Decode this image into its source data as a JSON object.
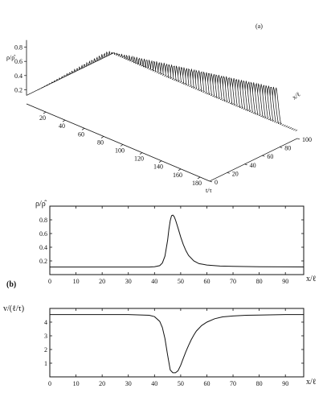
{
  "chart_data": [
    {
      "panel_label": "(a)",
      "type": "surface3d",
      "z_axis": {
        "label": "ρ/ρ̂",
        "ticks": [
          "0.2",
          "0.4",
          "0.6",
          "0.8"
        ]
      },
      "x_axis": {
        "label": "x/ℓ",
        "ticks": [
          "0",
          "20",
          "40",
          "60",
          "80",
          "100"
        ]
      },
      "t_axis": {
        "label": "t/τ",
        "ticks": [
          "20",
          "40",
          "60",
          "80",
          "100",
          "120",
          "140",
          "160",
          "180"
        ]
      },
      "background_density": 0.12,
      "peak_density": 0.88,
      "x_range": [
        0,
        100
      ],
      "t_range": [
        0,
        190
      ]
    },
    {
      "panel_label": "(b)",
      "type": "line",
      "ylabel": "ρ/ρ̂",
      "xlabel": "x/ℓ",
      "xlim": [
        0,
        97
      ],
      "ylim": [
        0,
        1
      ],
      "xticks": [
        "0",
        "10",
        "20",
        "30",
        "40",
        "50",
        "60",
        "70",
        "80",
        "90"
      ],
      "yticks": [
        "0.2",
        "0.4",
        "0.6",
        "0.8"
      ],
      "x": [
        0,
        10,
        20,
        30,
        38,
        40,
        42,
        43,
        44,
        45,
        45.5,
        46,
        46.5,
        47,
        47.5,
        48,
        49,
        50,
        51,
        52,
        53,
        55,
        57,
        60,
        65,
        70,
        80,
        90,
        97
      ],
      "y": [
        0.11,
        0.11,
        0.11,
        0.11,
        0.11,
        0.115,
        0.13,
        0.17,
        0.27,
        0.5,
        0.66,
        0.79,
        0.86,
        0.87,
        0.85,
        0.8,
        0.68,
        0.55,
        0.44,
        0.35,
        0.28,
        0.2,
        0.16,
        0.14,
        0.125,
        0.12,
        0.115,
        0.113,
        0.112
      ]
    },
    {
      "type": "line",
      "ylabel": "v/(ℓ/τ)",
      "xlabel": "x/ℓ",
      "xlim": [
        0,
        97
      ],
      "ylim": [
        0,
        5
      ],
      "xticks": [
        "0",
        "10",
        "20",
        "30",
        "40",
        "50",
        "60",
        "70",
        "80",
        "90"
      ],
      "yticks": [
        "1",
        "2",
        "3",
        "4"
      ],
      "x": [
        0,
        10,
        20,
        30,
        38,
        40,
        42,
        43,
        44,
        45,
        46,
        47,
        48,
        49,
        50,
        51,
        52,
        53,
        54,
        55,
        56,
        58,
        60,
        63,
        66,
        70,
        75,
        80,
        90,
        97
      ],
      "y": [
        4.55,
        4.55,
        4.55,
        4.55,
        4.5,
        4.4,
        4.05,
        3.6,
        2.8,
        1.6,
        0.5,
        0.3,
        0.3,
        0.45,
        0.85,
        1.35,
        1.85,
        2.3,
        2.7,
        3.05,
        3.35,
        3.75,
        4.0,
        4.25,
        4.38,
        4.45,
        4.5,
        4.52,
        4.55,
        4.55
      ]
    }
  ]
}
